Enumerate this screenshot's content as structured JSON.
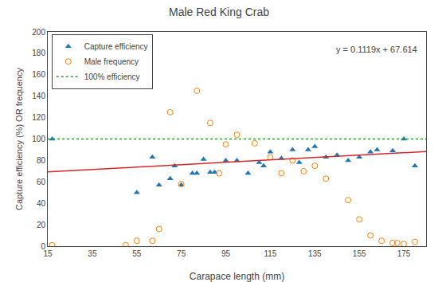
{
  "chart_data": {
    "type": "scatter",
    "title": "Male Red King Crab",
    "x_label": "Carapace length (mm)",
    "y_label": "Capture efficiency (%) OR frequency",
    "annotations": [
      "y = 0.1119x + 67.614"
    ],
    "xlim": [
      15,
      185
    ],
    "ylim": [
      0,
      200
    ],
    "xticks": [
      15,
      35,
      55,
      75,
      95,
      115,
      135,
      155,
      175
    ],
    "yticks": [
      0,
      20,
      40,
      60,
      80,
      100,
      120,
      140,
      160,
      180,
      200
    ],
    "grid": false,
    "legend": "upper left",
    "series": [
      {
        "name": "Capture efficiency",
        "type": "scatter",
        "marker": "triangle",
        "x": [
          17,
          55,
          62,
          65,
          70,
          72,
          75,
          80,
          82,
          85,
          88,
          90,
          95,
          100,
          105,
          110,
          112,
          115,
          120,
          125,
          128,
          132,
          135,
          140,
          145,
          150,
          155,
          160,
          163,
          170,
          175,
          180
        ],
        "values": [
          100,
          50,
          83,
          57,
          63,
          75,
          57,
          68,
          68,
          81,
          69,
          69,
          80,
          80,
          68,
          78,
          75,
          88,
          82,
          90,
          78,
          90,
          93,
          83,
          85,
          80,
          83,
          88,
          90,
          89,
          100,
          75
        ]
      },
      {
        "name": "Male frequency",
        "type": "scatter",
        "marker": "open circle",
        "x": [
          17,
          50,
          55,
          62,
          65,
          70,
          75,
          82,
          88,
          92,
          95,
          100,
          108,
          115,
          120,
          125,
          130,
          135,
          140,
          150,
          155,
          160,
          165,
          170,
          172,
          175,
          180
        ],
        "values": [
          1,
          1,
          5,
          5,
          16,
          125,
          58,
          145,
          115,
          68,
          95,
          104,
          96,
          83,
          68,
          80,
          70,
          75,
          63,
          43,
          25,
          10,
          5,
          3,
          3,
          2,
          4
        ]
      },
      {
        "name": "100% efficiency",
        "type": "line",
        "line_style": "dotted",
        "x": [
          15,
          185
        ],
        "values": [
          100,
          100
        ]
      },
      {
        "type": "line",
        "line_style": "solid",
        "x": [
          15,
          185
        ],
        "values": [
          69.2925,
          88.3155
        ]
      }
    ]
  }
}
